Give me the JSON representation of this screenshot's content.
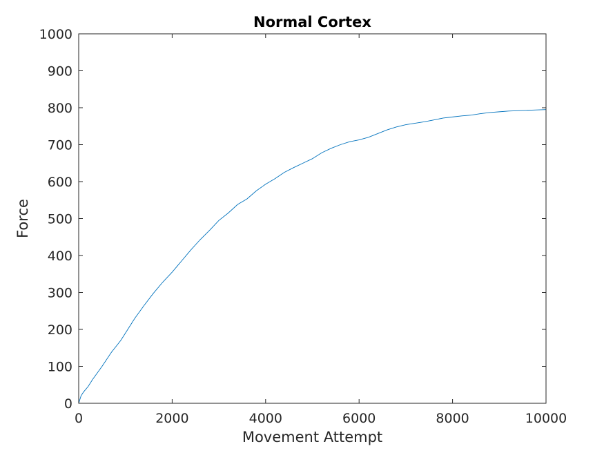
{
  "chart_data": {
    "type": "line",
    "title": "Normal Cortex",
    "xlabel": "Movement Attempt",
    "ylabel": "Force",
    "xlim": [
      0,
      10000
    ],
    "ylim": [
      0,
      1000
    ],
    "xticks": [
      0,
      2000,
      4000,
      6000,
      8000,
      10000
    ],
    "yticks": [
      0,
      100,
      200,
      300,
      400,
      500,
      600,
      700,
      800,
      900,
      1000
    ],
    "xtick_labels": [
      "0",
      "2000",
      "4000",
      "6000",
      "8000",
      "10000"
    ],
    "ytick_labels": [
      "0",
      "100",
      "200",
      "300",
      "400",
      "500",
      "600",
      "700",
      "800",
      "900",
      "1000"
    ],
    "grid": false,
    "box": true,
    "line_color": "#0072BD",
    "series": [
      {
        "x": [
          0,
          50,
          100,
          200,
          300,
          500,
          700,
          900,
          1000,
          1200,
          1400,
          1600,
          1800,
          2000,
          2200,
          2400,
          2600,
          2800,
          3000,
          3200,
          3400,
          3600,
          3800,
          4000,
          4200,
          4400,
          4600,
          4800,
          5000,
          5200,
          5400,
          5600,
          5800,
          6000,
          6200,
          6400,
          6600,
          6800,
          7000,
          7200,
          7400,
          7600,
          7800,
          8000,
          8200,
          8400,
          8600,
          8800,
          9000,
          9200,
          9400,
          9600,
          9800,
          10000
        ],
        "y": [
          0,
          20,
          30,
          45,
          65,
          100,
          138,
          170,
          190,
          230,
          265,
          298,
          328,
          355,
          385,
          415,
          443,
          468,
          495,
          515,
          538,
          553,
          575,
          593,
          608,
          625,
          638,
          650,
          662,
          678,
          690,
          700,
          708,
          713,
          720,
          730,
          740,
          748,
          754,
          758,
          762,
          767,
          772,
          775,
          778,
          780,
          784,
          787,
          789,
          791,
          792,
          793,
          794,
          795
        ]
      }
    ]
  }
}
